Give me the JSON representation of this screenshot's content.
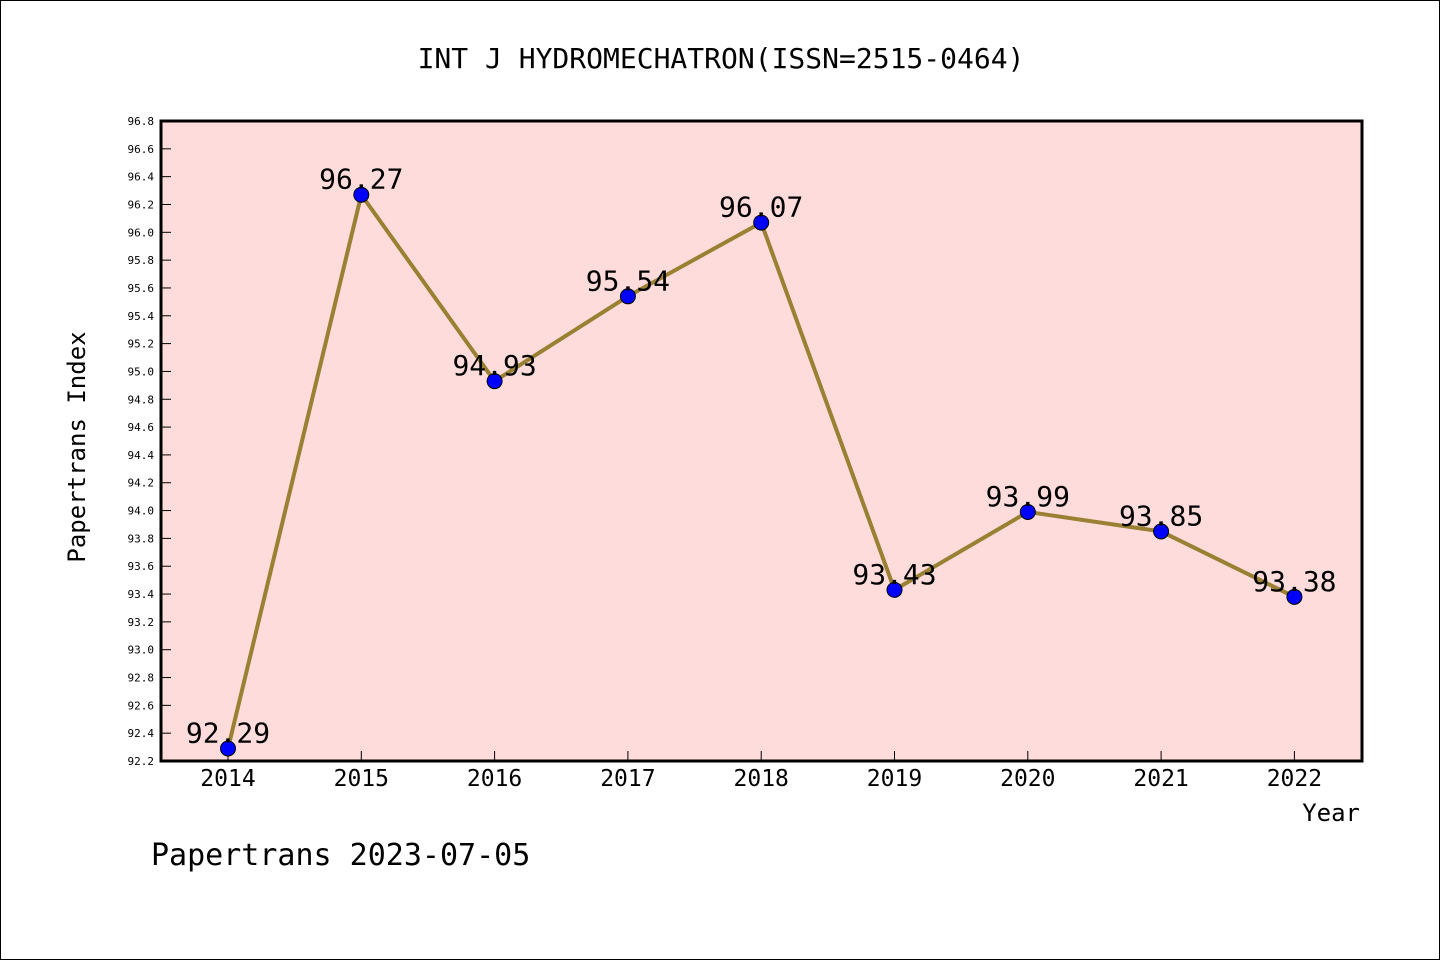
{
  "chart_data": {
    "type": "line",
    "title": "INT J HYDROMECHATRON(ISSN=2515-0464)",
    "xlabel": "Year",
    "ylabel": "Papertrans Index",
    "categories": [
      "2014",
      "2015",
      "2016",
      "2017",
      "2018",
      "2019",
      "2020",
      "2021",
      "2022"
    ],
    "series": [
      {
        "values": [
          92.29,
          96.27,
          94.93,
          95.54,
          96.07,
          93.43,
          93.99,
          93.85,
          93.38
        ],
        "labels": [
          "92.29",
          "96.27",
          "94.93",
          "95.54",
          "96.07",
          "93.43",
          "93.99",
          "93.85",
          "93.38"
        ]
      }
    ],
    "ylim": [
      92.2,
      96.8
    ],
    "ytick_step": 0.2,
    "grid": false,
    "colors": {
      "plot_background": "#ffdcdc",
      "line": "#998033",
      "marker": "#0000ff"
    }
  },
  "footer": "Papertrans 2023-07-05"
}
